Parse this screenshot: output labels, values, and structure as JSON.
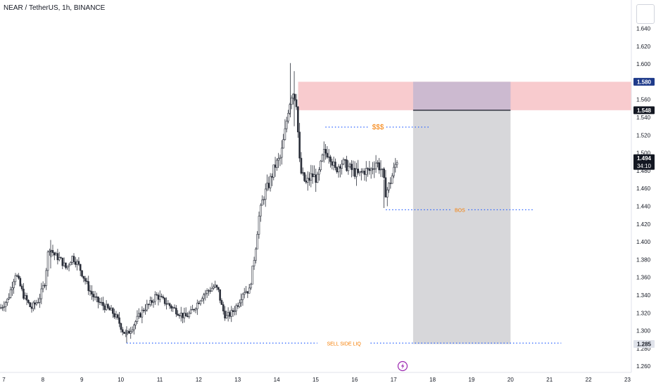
{
  "header": {
    "symbol_title": "NEAR / TetherUS, 1h, BINANCE"
  },
  "colors": {
    "candle": "#2a2e39",
    "dotted_line": "#2962ff",
    "annotation_text": "#f57c00",
    "supply_zone": "#f7c5c9",
    "target_zone": "#c9b8d0",
    "stop_zone": "#d3d3d6",
    "price_label_dark": "#131722",
    "price_label_blue": "#1e3a8a",
    "axis_text": "#131722"
  },
  "chart_data": {
    "type": "candlestick",
    "ylim": [
      1.253,
      1.672
    ],
    "xlim": [
      6.9,
      23.1
    ],
    "y_ticks": [
      "1.640",
      "1.620",
      "1.600",
      "1.580",
      "1.560",
      "1.540",
      "1.520",
      "1.500",
      "1.480",
      "1.460",
      "1.440",
      "1.420",
      "1.400",
      "1.380",
      "1.360",
      "1.340",
      "1.320",
      "1.300",
      "1.280",
      "1.260"
    ],
    "x_ticks": [
      "7",
      "8",
      "9",
      "10",
      "11",
      "12",
      "13",
      "14",
      "15",
      "16",
      "17",
      "18",
      "19",
      "20",
      "21",
      "22",
      "23"
    ],
    "price_labels": [
      {
        "value": "1.580",
        "y": 1.58,
        "style": "blue"
      },
      {
        "value": "1.548",
        "y": 1.548,
        "style": "dark"
      },
      {
        "value": "1.494",
        "sub": "34:10",
        "y": 1.494,
        "style": "dark"
      },
      {
        "value": "1.285",
        "y": 1.285,
        "style": "light"
      }
    ],
    "annotations": [
      {
        "text": "$$$",
        "x_start": 15.25,
        "x_end": 17.95,
        "y": 1.529
      },
      {
        "text": "BOS",
        "x_start": 16.8,
        "x_end": 20.6,
        "y": 1.436
      },
      {
        "text": "SELL SIDE LIQ",
        "x_start": 10.15,
        "x_end": 21.3,
        "y": 1.286
      }
    ],
    "zones": [
      {
        "name": "supply",
        "x_start": 14.55,
        "x_end": 23.1,
        "y_top": 1.58,
        "y_bottom": 1.548
      },
      {
        "name": "target",
        "x_start": 17.5,
        "x_end": 20.0,
        "y_top": 1.58,
        "y_bottom": 1.548
      },
      {
        "name": "stop",
        "x_start": 17.5,
        "x_end": 20.0,
        "y_top": 1.548,
        "y_bottom": 1.285
      }
    ],
    "path_points": [
      [
        6.9,
        1.325
      ],
      [
        7.1,
        1.335
      ],
      [
        7.3,
        1.365
      ],
      [
        7.5,
        1.34
      ],
      [
        7.7,
        1.325
      ],
      [
        7.9,
        1.335
      ],
      [
        8.05,
        1.355
      ],
      [
        8.15,
        1.395
      ],
      [
        8.3,
        1.385
      ],
      [
        8.45,
        1.38
      ],
      [
        8.6,
        1.37
      ],
      [
        8.75,
        1.383
      ],
      [
        8.9,
        1.375
      ],
      [
        9.05,
        1.36
      ],
      [
        9.2,
        1.345
      ],
      [
        9.35,
        1.335
      ],
      [
        9.5,
        1.33
      ],
      [
        9.65,
        1.325
      ],
      [
        9.8,
        1.32
      ],
      [
        9.95,
        1.31
      ],
      [
        10.05,
        1.3
      ],
      [
        10.15,
        1.295
      ],
      [
        10.3,
        1.305
      ],
      [
        10.45,
        1.315
      ],
      [
        10.6,
        1.325
      ],
      [
        10.75,
        1.33
      ],
      [
        10.9,
        1.34
      ],
      [
        11.05,
        1.335
      ],
      [
        11.2,
        1.33
      ],
      [
        11.35,
        1.325
      ],
      [
        11.5,
        1.32
      ],
      [
        11.65,
        1.315
      ],
      [
        11.8,
        1.32
      ],
      [
        11.95,
        1.33
      ],
      [
        12.1,
        1.34
      ],
      [
        12.25,
        1.345
      ],
      [
        12.4,
        1.35
      ],
      [
        12.5,
        1.345
      ],
      [
        12.6,
        1.325
      ],
      [
        12.7,
        1.315
      ],
      [
        12.85,
        1.32
      ],
      [
        13.0,
        1.33
      ],
      [
        13.15,
        1.345
      ],
      [
        13.3,
        1.345
      ],
      [
        13.45,
        1.39
      ],
      [
        13.55,
        1.43
      ],
      [
        13.65,
        1.45
      ],
      [
        13.8,
        1.465
      ],
      [
        13.95,
        1.485
      ],
      [
        14.1,
        1.495
      ],
      [
        14.2,
        1.52
      ],
      [
        14.3,
        1.55
      ],
      [
        14.4,
        1.57
      ],
      [
        14.5,
        1.56
      ],
      [
        14.6,
        1.48
      ],
      [
        14.75,
        1.465
      ],
      [
        14.9,
        1.475
      ],
      [
        15.05,
        1.47
      ],
      [
        15.2,
        1.5
      ],
      [
        15.35,
        1.5
      ],
      [
        15.5,
        1.48
      ],
      [
        15.65,
        1.49
      ],
      [
        15.8,
        1.485
      ],
      [
        15.95,
        1.48
      ],
      [
        16.1,
        1.475
      ],
      [
        16.25,
        1.48
      ],
      [
        16.4,
        1.48
      ],
      [
        16.55,
        1.49
      ],
      [
        16.7,
        1.48
      ],
      [
        16.8,
        1.455
      ],
      [
        16.9,
        1.465
      ],
      [
        17.0,
        1.48
      ],
      [
        17.1,
        1.494
      ]
    ]
  }
}
